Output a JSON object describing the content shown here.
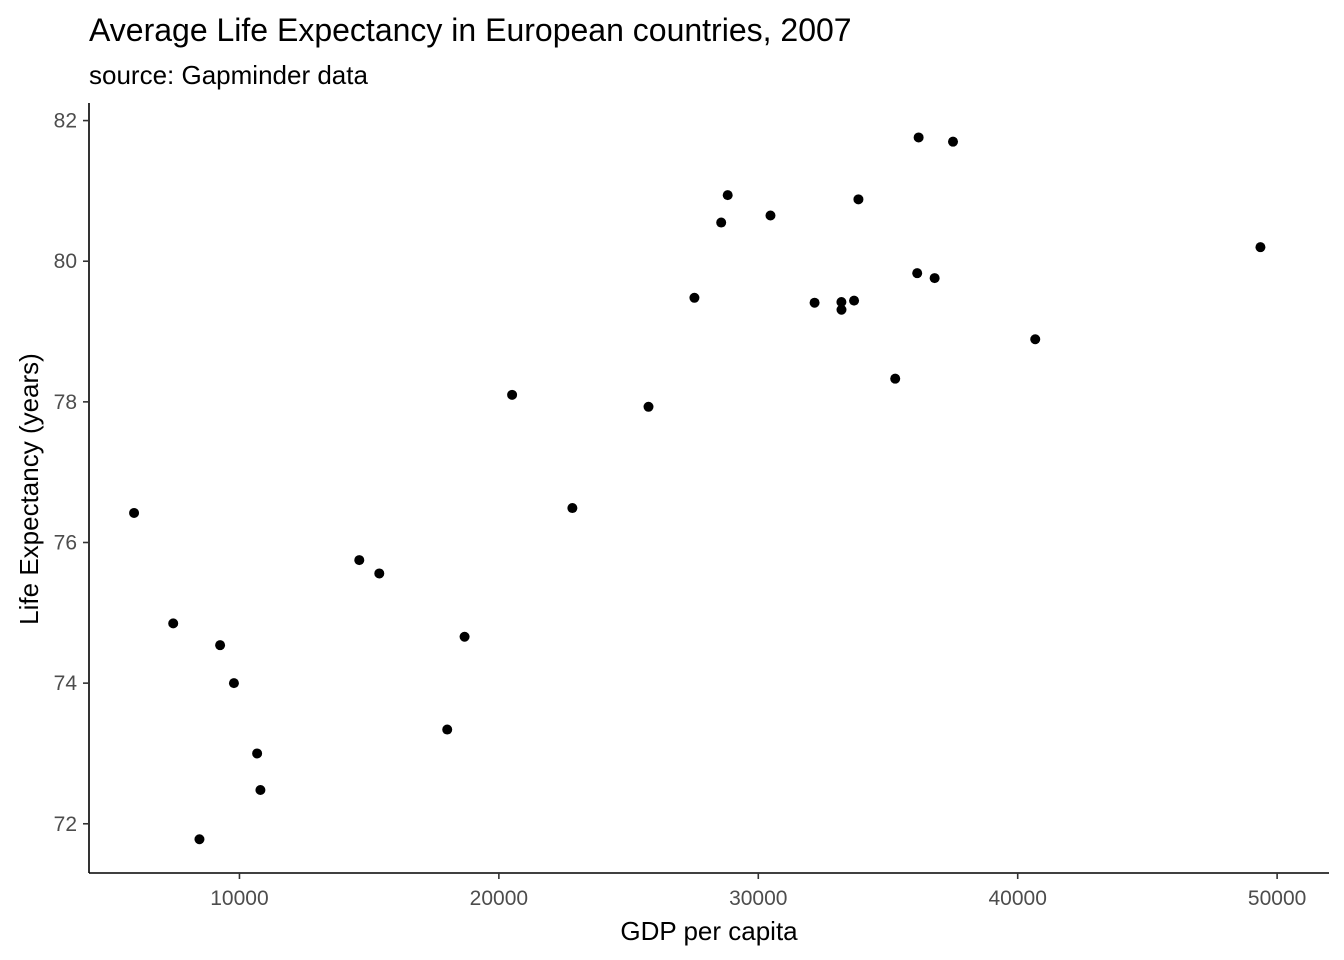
{
  "chart_data": {
    "type": "scatter",
    "title": "Average Life Expectancy in European countries, 2007",
    "subtitle": "source: Gapminder data",
    "xlabel": "GDP per capita",
    "ylabel": "Life Expectancy (years)",
    "xlim": [
      4200,
      52000
    ],
    "ylim": [
      71.3,
      82.25
    ],
    "xticks": [
      10000,
      20000,
      30000,
      40000,
      50000
    ],
    "yticks": [
      72,
      74,
      76,
      78,
      80,
      82
    ],
    "grid": false,
    "legend": "none",
    "point_color": "#000000",
    "points": [
      {
        "x": 5937,
        "y": 76.42
      },
      {
        "x": 7446,
        "y": 74.85
      },
      {
        "x": 8458,
        "y": 71.78
      },
      {
        "x": 9254,
        "y": 74.54
      },
      {
        "x": 9787,
        "y": 74.0
      },
      {
        "x": 10681,
        "y": 73.0
      },
      {
        "x": 10808,
        "y": 72.48
      },
      {
        "x": 14619,
        "y": 75.75
      },
      {
        "x": 15390,
        "y": 75.56
      },
      {
        "x": 18009,
        "y": 73.34
      },
      {
        "x": 18678,
        "y": 74.66
      },
      {
        "x": 20510,
        "y": 78.1
      },
      {
        "x": 22833,
        "y": 76.49
      },
      {
        "x": 25768,
        "y": 77.93
      },
      {
        "x": 27538,
        "y": 79.48
      },
      {
        "x": 28570,
        "y": 80.55
      },
      {
        "x": 28821,
        "y": 80.94
      },
      {
        "x": 30470,
        "y": 80.65
      },
      {
        "x": 32170,
        "y": 79.41
      },
      {
        "x": 33204,
        "y": 79.42
      },
      {
        "x": 33207,
        "y": 79.31
      },
      {
        "x": 33692,
        "y": 79.44
      },
      {
        "x": 33860,
        "y": 80.88
      },
      {
        "x": 35278,
        "y": 78.33
      },
      {
        "x": 36126,
        "y": 79.83
      },
      {
        "x": 36181,
        "y": 81.76
      },
      {
        "x": 36798,
        "y": 79.76
      },
      {
        "x": 37506,
        "y": 81.7
      },
      {
        "x": 40676,
        "y": 78.89
      },
      {
        "x": 49357,
        "y": 80.2
      }
    ]
  }
}
